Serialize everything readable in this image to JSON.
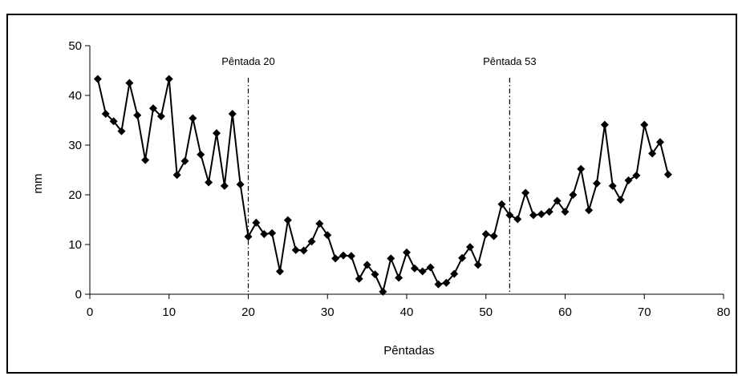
{
  "chart_data": {
    "type": "line",
    "xlabel": "Pêntadas",
    "ylabel": "mm",
    "xlim": [
      0,
      80
    ],
    "ylim": [
      0,
      50
    ],
    "x_ticks": [
      0,
      10,
      20,
      30,
      40,
      50,
      60,
      70,
      80
    ],
    "y_ticks": [
      0,
      10,
      20,
      30,
      40,
      50
    ],
    "grid": false,
    "marker": "diamond",
    "line_color": "#000000",
    "x": [
      1,
      2,
      3,
      4,
      5,
      6,
      7,
      8,
      9,
      10,
      11,
      12,
      13,
      14,
      15,
      16,
      17,
      18,
      19,
      20,
      21,
      22,
      23,
      24,
      25,
      26,
      27,
      28,
      29,
      30,
      31,
      32,
      33,
      34,
      35,
      36,
      37,
      38,
      39,
      40,
      41,
      42,
      43,
      44,
      45,
      46,
      47,
      48,
      49,
      50,
      51,
      52,
      53,
      54,
      55,
      56,
      57,
      58,
      59,
      60,
      61,
      62,
      63,
      64,
      65,
      66,
      67,
      68,
      69,
      70,
      71,
      72,
      73
    ],
    "values": [
      43.3,
      36.3,
      34.8,
      32.8,
      42.5,
      36.0,
      27.0,
      37.4,
      35.8,
      43.3,
      24.0,
      26.8,
      35.4,
      28.1,
      22.5,
      32.4,
      21.8,
      36.3,
      22.1,
      11.6,
      14.4,
      12.1,
      12.3,
      4.6,
      14.9,
      8.9,
      8.8,
      10.6,
      14.2,
      11.9,
      7.2,
      7.8,
      7.7,
      3.1,
      5.9,
      4.0,
      0.5,
      7.2,
      3.3,
      8.4,
      5.2,
      4.6,
      5.4,
      2.0,
      2.3,
      4.1,
      7.3,
      9.5,
      5.9,
      12.1,
      11.7,
      18.1,
      15.9,
      15.1,
      20.4,
      15.9,
      16.1,
      16.6,
      18.8,
      16.6,
      20.0,
      25.2,
      16.9,
      22.3,
      34.1,
      21.8,
      19.0,
      22.9,
      23.9,
      34.1,
      28.3,
      30.6,
      24.1
    ],
    "reference_lines": [
      {
        "x": 20,
        "label": "Pêntada 20"
      },
      {
        "x": 53,
        "label": "Pêntada 53"
      }
    ]
  }
}
